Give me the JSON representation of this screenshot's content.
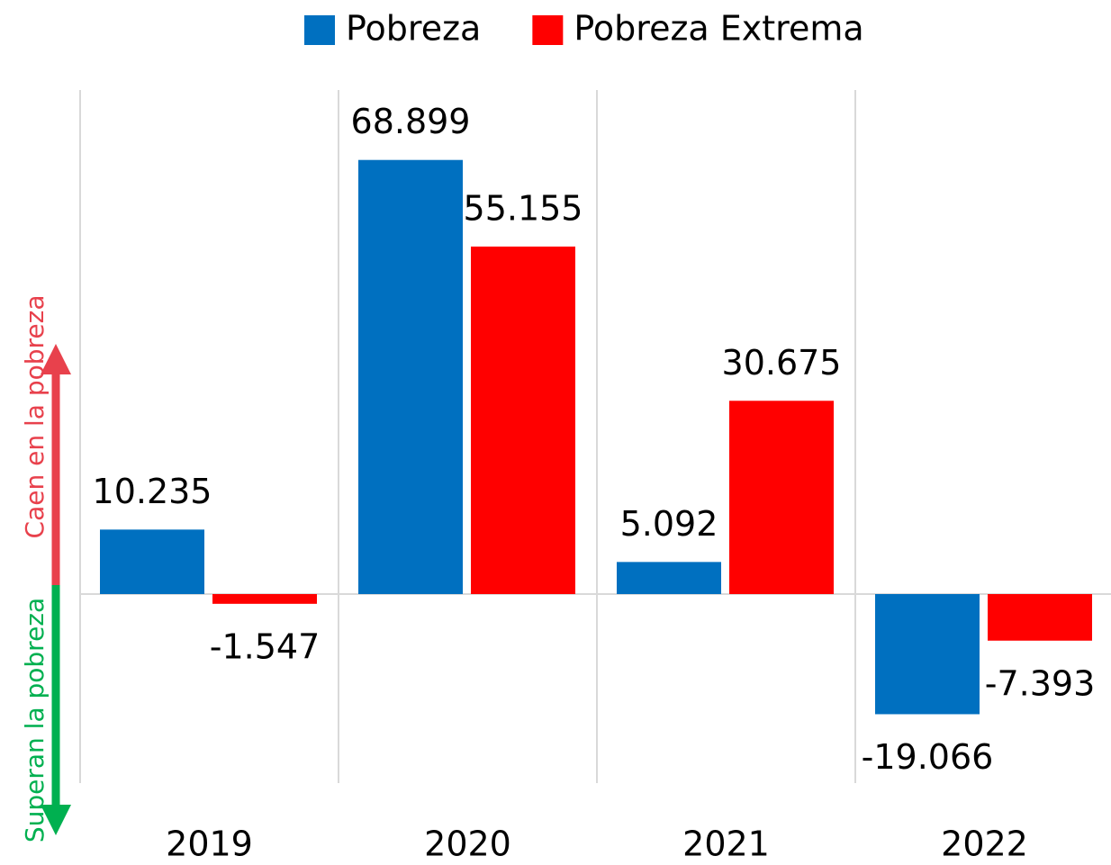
{
  "chart_data": {
    "type": "bar",
    "categories": [
      "2019",
      "2020",
      "2021",
      "2022"
    ],
    "series": [
      {
        "name": "Pobreza",
        "color": "#0070c0",
        "values": [
          10.235,
          68.899,
          5.092,
          -19.066
        ]
      },
      {
        "name": "Pobreza Extrema",
        "color": "#ff0000",
        "values": [
          -1.547,
          55.155,
          30.675,
          -7.393
        ]
      }
    ],
    "ylim": [
      -30,
      80
    ],
    "annotations": [
      "Caen en la pobreza",
      "Superan la pobreza"
    ]
  }
}
